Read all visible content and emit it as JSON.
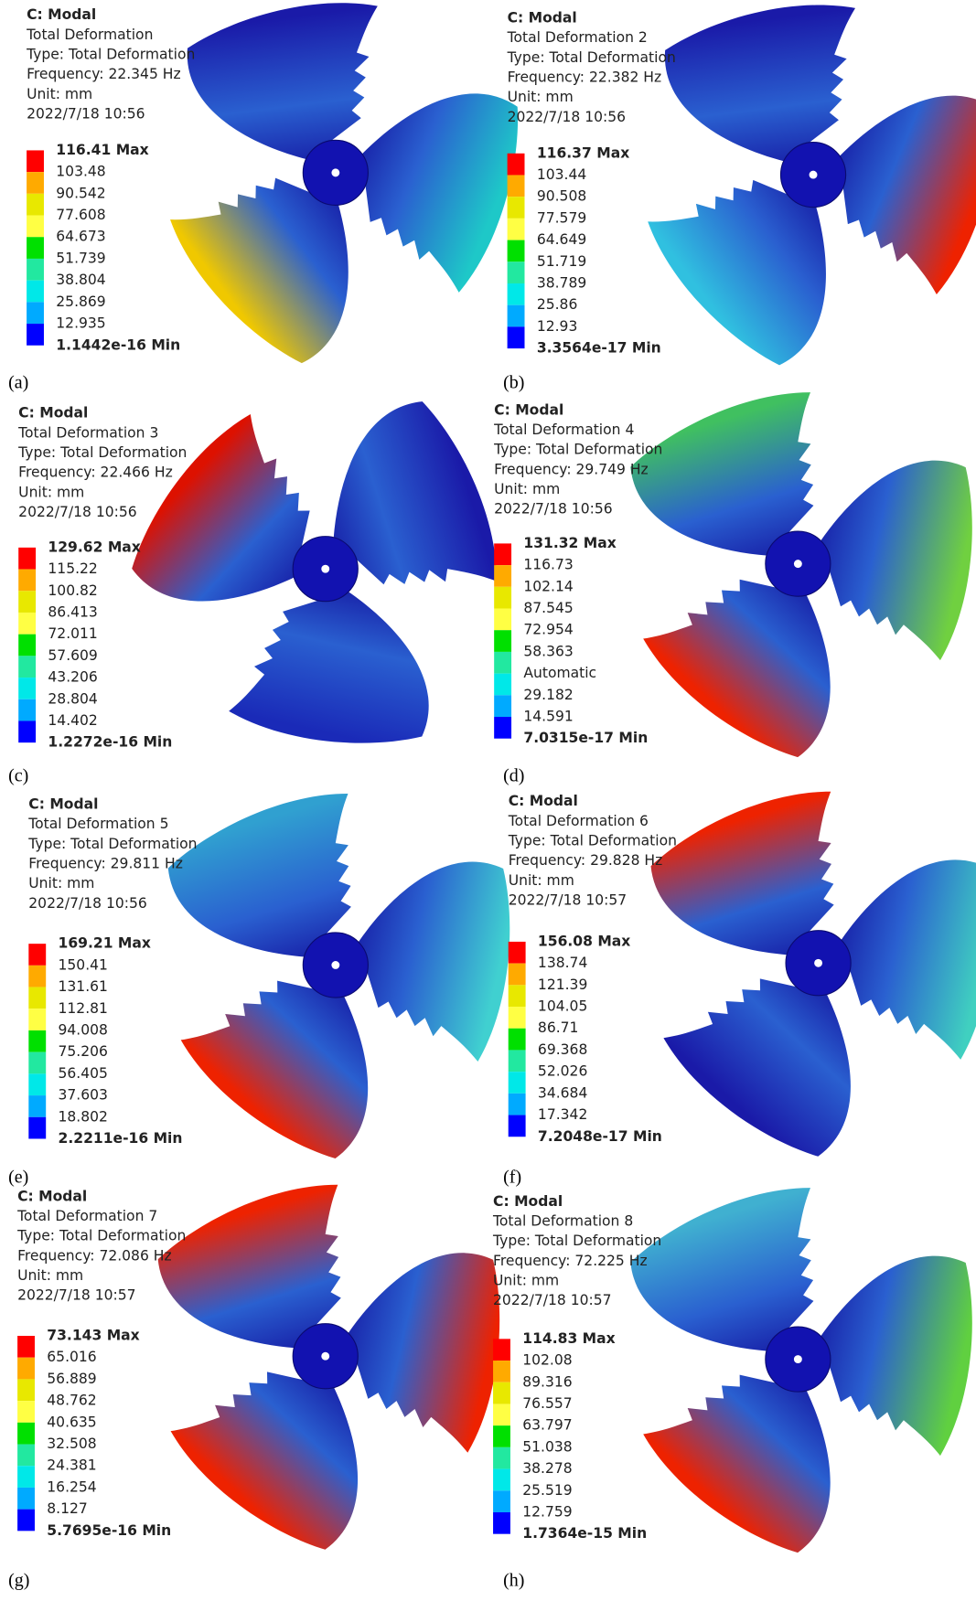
{
  "panels": [
    {
      "caption": "(a)",
      "header": [
        "C: Modal",
        "Total Deformation",
        "Type: Total Deformation",
        "Frequency: 22.345 Hz",
        "Unit: mm",
        "2022/7/18 10:56"
      ],
      "legend": [
        "116.41 Max",
        "103.48",
        "90.542",
        "77.608",
        "64.673",
        "51.739",
        "38.804",
        "25.869",
        "12.935",
        "1.1442e-16 Min"
      ]
    },
    {
      "caption": "(b)",
      "header": [
        "C: Modal",
        "Total Deformation 2",
        "Type: Total Deformation",
        "Frequency: 22.382 Hz",
        "Unit: mm",
        "2022/7/18 10:56"
      ],
      "legend": [
        "116.37 Max",
        "103.44",
        "90.508",
        "77.579",
        "64.649",
        "51.719",
        "38.789",
        "25.86",
        "12.93",
        "3.3564e-17 Min"
      ]
    },
    {
      "caption": "(c)",
      "header": [
        "C: Modal",
        "Total Deformation 3",
        "Type: Total Deformation",
        "Frequency: 22.466 Hz",
        "Unit: mm",
        "2022/7/18 10:56"
      ],
      "legend": [
        "129.62 Max",
        "115.22",
        "100.82",
        "86.413",
        "72.011",
        "57.609",
        "43.206",
        "28.804",
        "14.402",
        "1.2272e-16 Min"
      ]
    },
    {
      "caption": "(d)",
      "header": [
        "C: Modal",
        "Total Deformation 4",
        "Type: Total Deformation",
        "Frequency: 29.749 Hz",
        "Unit: mm",
        "2022/7/18 10:56"
      ],
      "legend": [
        "131.32 Max",
        "116.73",
        "102.14",
        "87.545",
        "72.954",
        "58.363",
        "Automatic",
        "29.182",
        "14.591",
        "7.0315e-17 Min"
      ]
    },
    {
      "caption": "(e)",
      "header": [
        "C: Modal",
        "Total Deformation 5",
        "Type: Total Deformation",
        "Frequency: 29.811 Hz",
        "Unit: mm",
        "2022/7/18 10:56"
      ],
      "legend": [
        "169.21 Max",
        "150.41",
        "131.61",
        "112.81",
        "94.008",
        "75.206",
        "56.405",
        "37.603",
        "18.802",
        "2.2211e-16 Min"
      ]
    },
    {
      "caption": "(f)",
      "header": [
        "C: Modal",
        "Total Deformation 6",
        "Type: Total Deformation",
        "Frequency: 29.828 Hz",
        "Unit: mm",
        "2022/7/18 10:57"
      ],
      "legend": [
        "156.08 Max",
        "138.74",
        "121.39",
        "104.05",
        "86.71",
        "69.368",
        "52.026",
        "34.684",
        "17.342",
        "7.2048e-17 Min"
      ]
    },
    {
      "caption": "(g)",
      "header": [
        "C: Modal",
        "Total Deformation 7",
        "Type: Total Deformation",
        "Frequency: 72.086 Hz",
        "Unit: mm",
        "2022/7/18 10:57"
      ],
      "legend": [
        "73.143 Max",
        "65.016",
        "56.889",
        "48.762",
        "40.635",
        "32.508",
        "24.381",
        "16.254",
        "8.127",
        "5.7695e-16 Min"
      ]
    },
    {
      "caption": "(h)",
      "header": [
        "C: Modal",
        "Total Deformation 8",
        "Type: Total Deformation",
        "Frequency: 72.225 Hz",
        "Unit: mm",
        "2022/7/18 10:57"
      ],
      "legend": [
        "114.83 Max",
        "102.08",
        "89.316",
        "76.557",
        "63.797",
        "51.038",
        "38.278",
        "25.519",
        "12.759",
        "1.7364e-15 Min"
      ]
    }
  ]
}
